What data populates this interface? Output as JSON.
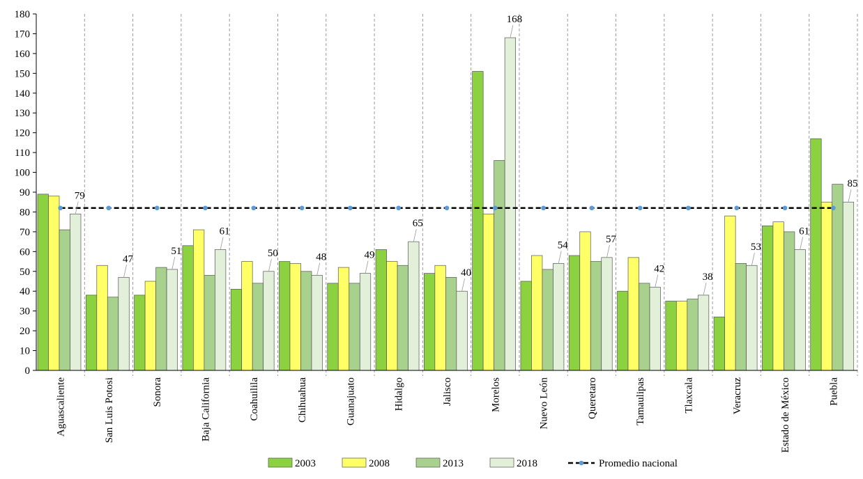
{
  "chart_data": {
    "type": "bar",
    "title": "",
    "xlabel": "",
    "ylabel": "",
    "ylim": [
      0,
      180
    ],
    "ytick_step": 10,
    "grid": "vertical dashed separators between categories",
    "categories": [
      "Aguascaliente",
      "San Luis Potosi",
      "Sonora",
      "Baja California",
      "Coahuilila",
      "Chihuahua",
      "Guanajuato",
      "Hidalgo",
      "Jalisco",
      "Morelos",
      "Nuevo León",
      "Queretaro",
      "Tamaulipas",
      "Tlaxcala",
      "Veracruz",
      "Estado de México",
      "Puebla"
    ],
    "series": [
      {
        "name": "2003",
        "color": "#8cd140",
        "values": [
          89,
          38,
          38,
          63,
          41,
          55,
          44,
          61,
          49,
          151,
          45,
          58,
          40,
          35,
          27,
          73,
          117
        ]
      },
      {
        "name": "2008",
        "color": "#ffff66",
        "values": [
          88,
          53,
          45,
          71,
          55,
          54,
          52,
          55,
          53,
          79,
          58,
          70,
          57,
          35,
          78,
          75,
          85
        ]
      },
      {
        "name": "2013",
        "color": "#a9d18e",
        "values": [
          71,
          37,
          52,
          48,
          44,
          50,
          44,
          53,
          47,
          106,
          51,
          55,
          44,
          36,
          54,
          70,
          94
        ]
      },
      {
        "name": "2018",
        "color": "#e2efd9",
        "values": [
          79,
          47,
          51,
          61,
          50,
          48,
          49,
          65,
          40,
          168,
          54,
          57,
          42,
          38,
          53,
          61,
          85
        ]
      }
    ],
    "reference_line": {
      "name": "Promedio nacional",
      "value": 82,
      "color": "#000000",
      "marker_color": "#5b9bd5"
    },
    "data_labels": {
      "series": "2018",
      "labels": [
        "79",
        "47",
        "51",
        "61",
        "50",
        "48",
        "49",
        "65",
        "40",
        "168",
        "54",
        "57",
        "42",
        "38",
        "53",
        "61",
        "85"
      ]
    },
    "legend": {
      "position": "bottom",
      "entries": [
        "2003",
        "2008",
        "2013",
        "2018",
        "Promedio nacional"
      ]
    }
  }
}
